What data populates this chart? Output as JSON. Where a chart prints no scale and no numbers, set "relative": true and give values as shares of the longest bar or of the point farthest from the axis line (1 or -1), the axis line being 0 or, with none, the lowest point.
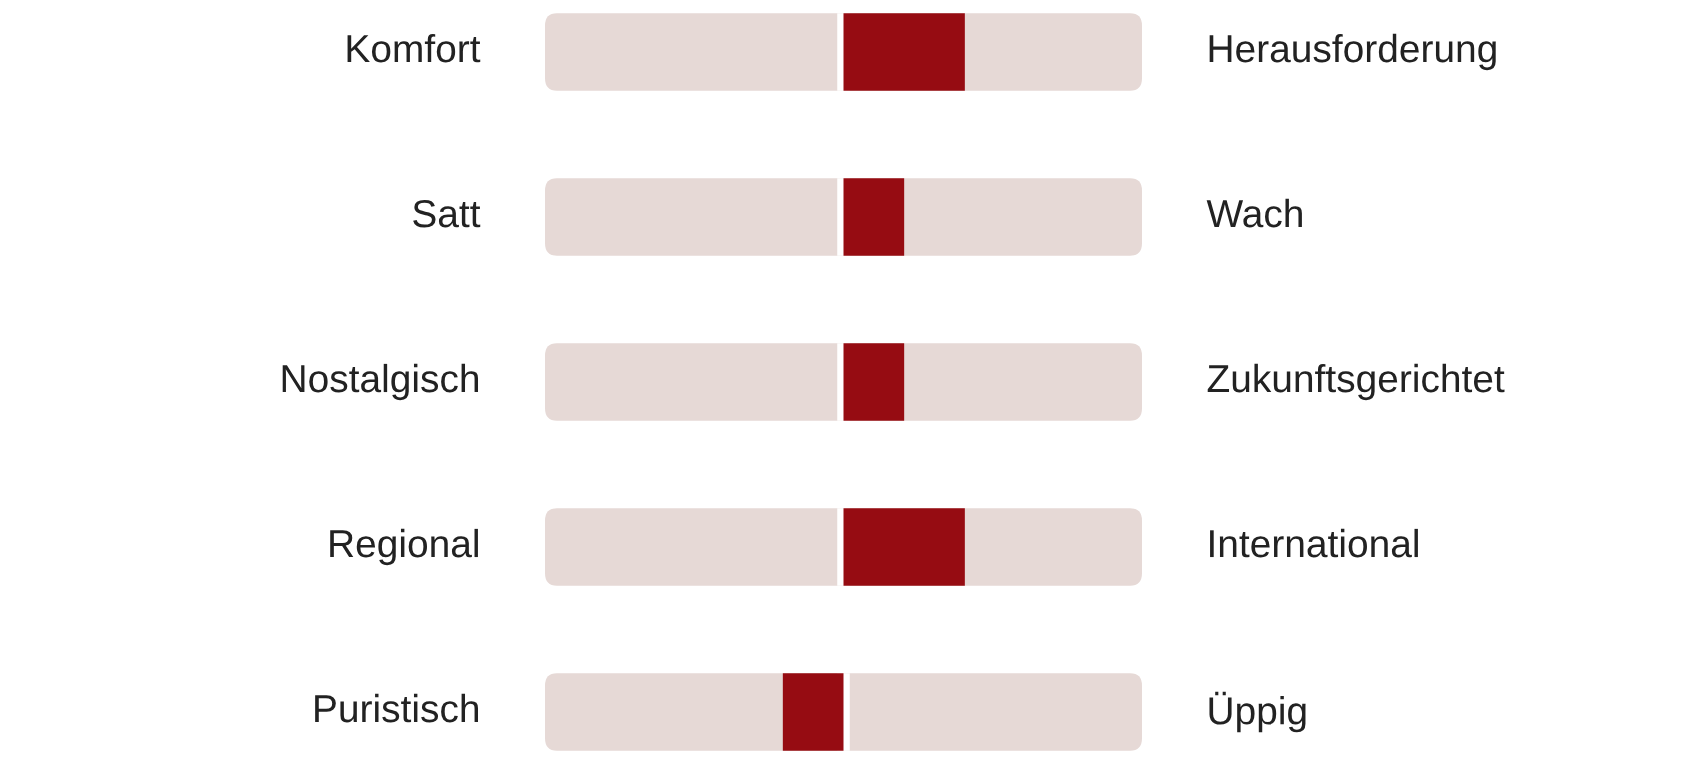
{
  "chart_data": {
    "type": "bar",
    "orientation": "horizontal",
    "relative": true,
    "categories": [
      "Komfort",
      "Satt",
      "Nostalgisch",
      "Regional",
      "Puristisch"
    ],
    "y2_categories": [
      "Herausforderung",
      "Wach",
      "Zukunftsgerichtet",
      "International",
      "Üppig"
    ],
    "series": [
      {
        "color": "#960c12",
        "values": [
          1,
          0.5,
          0.5,
          1,
          -0.5
        ]
      }
    ],
    "legend": false
  }
}
